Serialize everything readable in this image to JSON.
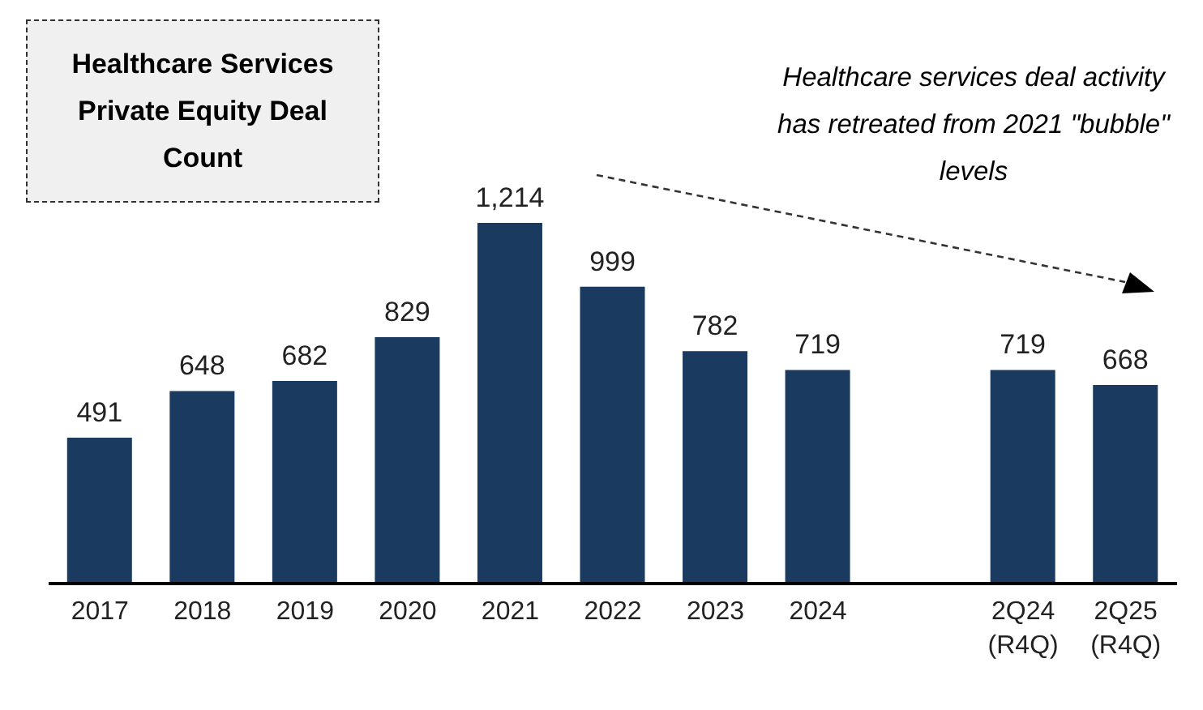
{
  "chart_data": {
    "type": "bar",
    "title": "Healthcare Services Private Equity Deal Count",
    "categories": [
      "2017",
      "2018",
      "2019",
      "2020",
      "2021",
      "2022",
      "2023",
      "2024",
      null,
      "2Q24 (R4Q)",
      "2Q25 (R4Q)"
    ],
    "values": [
      491,
      648,
      682,
      829,
      1214,
      999,
      782,
      719,
      null,
      719,
      668
    ],
    "color": "#1b3a5f",
    "value_labels": [
      "491",
      "648",
      "682",
      "829",
      "1,214",
      "999",
      "782",
      "719",
      null,
      "719",
      "668"
    ],
    "annotations": [
      "Healthcare services deal activity has retreated from 2021 \"bubble\" levels"
    ]
  }
}
